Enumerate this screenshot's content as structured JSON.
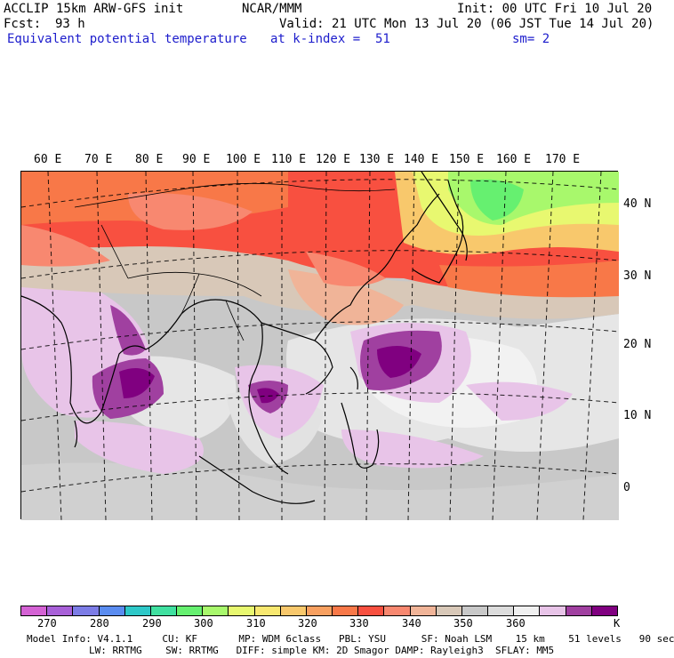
{
  "header": {
    "model": "ACCLIP 15km ARW-GFS init",
    "org": "NCAR/MMM",
    "init": "Init: 00 UTC Fri 10 Jul 20",
    "fcst_label": "Fcst:",
    "fcst_value": "93 h",
    "valid": "Valid: 21 UTC Mon 13 Jul 20 (06 JST Tue 14 Jul 20)",
    "field": "Equivalent potential temperature",
    "level": "at k-index =  51",
    "smooth": "sm= 2"
  },
  "map": {
    "lon_labels": [
      "60 E",
      "70 E",
      "80 E",
      "90 E",
      "100 E",
      "110 E",
      "120 E",
      "130 E",
      "140 E",
      "150 E",
      "160 E",
      "170 E"
    ],
    "lat_labels": [
      "40 N",
      "30 N",
      "20 N",
      "10 N",
      "0"
    ]
  },
  "colorbar": {
    "colors": [
      "#d462d4",
      "#a860d8",
      "#7c7ce6",
      "#5a8cf0",
      "#2ec8c8",
      "#40e0a0",
      "#66f070",
      "#a8f86c",
      "#e8f870",
      "#f8e870",
      "#f8c86c",
      "#f8a060",
      "#f87848",
      "#f85040",
      "#f88870",
      "#f0b498",
      "#d8c8b8",
      "#c8c8c8",
      "#dcdcdc",
      "#f0f0f0",
      "#e8c4e8",
      "#a040a0",
      "#800080"
    ],
    "labels": [
      "270",
      "280",
      "290",
      "300",
      "310",
      "320",
      "330",
      "340",
      "350",
      "360"
    ],
    "unit": "K"
  },
  "model_info": {
    "line1": "Model Info: V4.1.1     CU: KF       MP: WDM 6class   PBL: YSU      SF: Noah LSM    15 km    51 levels   90 sec",
    "line2": "LW: RRTMG    SW: RRTMG   DIFF: simple KM: 2D Smagor DAMP: Rayleigh3  SFLAY: MM5"
  }
}
